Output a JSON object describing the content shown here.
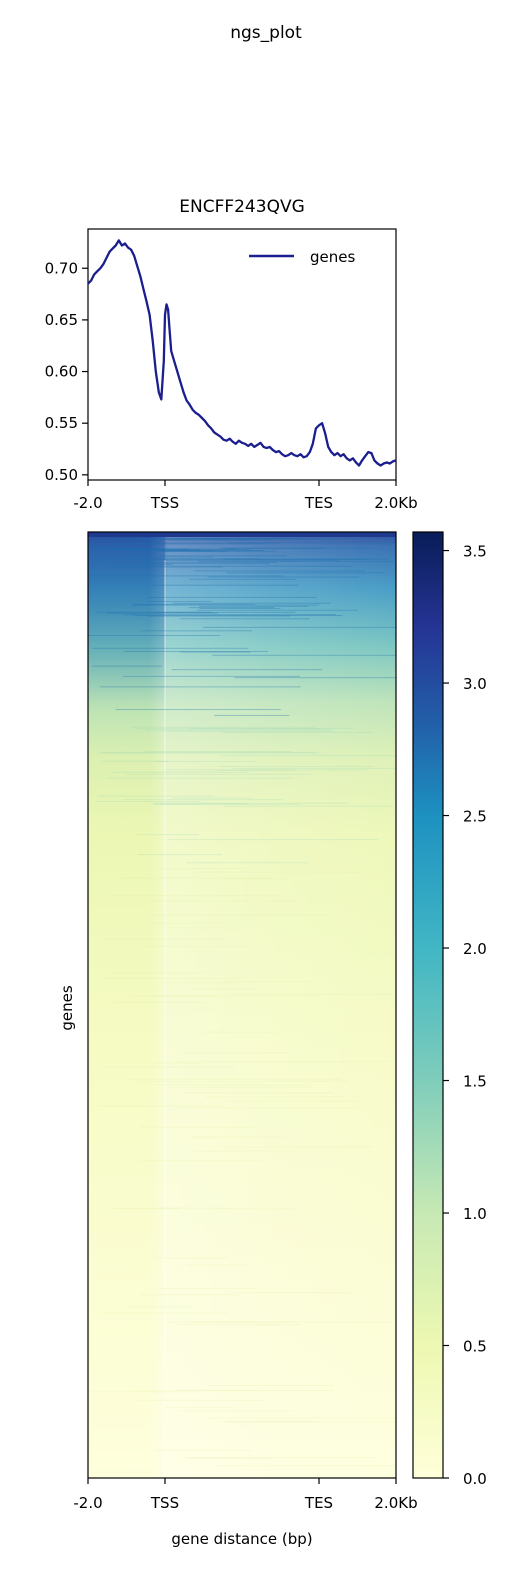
{
  "figure": {
    "suptitle": "ngs_plot"
  },
  "chart_data": [
    {
      "type": "line",
      "title": "ENCFF243QVG",
      "xlabel": "",
      "ylabel": "",
      "ylim": [
        0.495,
        0.738
      ],
      "xlim": [
        0,
        100
      ],
      "x_ticks": [
        {
          "pos": 0,
          "label": "-2.0"
        },
        {
          "pos": 25,
          "label": "TSS"
        },
        {
          "pos": 75,
          "label": "TES"
        },
        {
          "pos": 100,
          "label": "2.0Kb"
        }
      ],
      "y_ticks": [
        0.5,
        0.55,
        0.6,
        0.65,
        0.7
      ],
      "legend": "top-right",
      "series": [
        {
          "name": "genes",
          "color": "#1b1e8e",
          "points": [
            [
              0,
              0.685
            ],
            [
              1,
              0.688
            ],
            [
              2,
              0.694
            ],
            [
              3,
              0.697
            ],
            [
              4,
              0.7
            ],
            [
              5,
              0.704
            ],
            [
              6,
              0.71
            ],
            [
              7,
              0.716
            ],
            [
              8,
              0.719
            ],
            [
              9,
              0.722
            ],
            [
              10,
              0.727
            ],
            [
              11,
              0.722
            ],
            [
              12,
              0.724
            ],
            [
              13,
              0.72
            ],
            [
              14,
              0.718
            ],
            [
              15,
              0.712
            ],
            [
              16,
              0.702
            ],
            [
              17,
              0.692
            ],
            [
              18,
              0.68
            ],
            [
              19,
              0.668
            ],
            [
              20,
              0.655
            ],
            [
              21,
              0.63
            ],
            [
              22,
              0.6
            ],
            [
              23,
              0.58
            ],
            [
              23.8,
              0.573
            ],
            [
              24.6,
              0.61
            ],
            [
              25,
              0.655
            ],
            [
              25.5,
              0.665
            ],
            [
              26,
              0.66
            ],
            [
              26.5,
              0.64
            ],
            [
              27,
              0.62
            ],
            [
              28,
              0.61
            ],
            [
              29,
              0.6
            ],
            [
              30,
              0.59
            ],
            [
              31,
              0.58
            ],
            [
              32,
              0.572
            ],
            [
              33,
              0.568
            ],
            [
              34,
              0.563
            ],
            [
              35,
              0.56
            ],
            [
              36,
              0.558
            ],
            [
              37,
              0.555
            ],
            [
              38,
              0.552
            ],
            [
              39,
              0.548
            ],
            [
              40,
              0.545
            ],
            [
              41,
              0.541
            ],
            [
              42,
              0.539
            ],
            [
              43,
              0.537
            ],
            [
              44,
              0.534
            ],
            [
              45,
              0.533
            ],
            [
              46,
              0.535
            ],
            [
              47,
              0.532
            ],
            [
              48,
              0.53
            ],
            [
              49,
              0.533
            ],
            [
              50,
              0.531
            ],
            [
              51,
              0.53
            ],
            [
              52,
              0.528
            ],
            [
              53,
              0.53
            ],
            [
              54,
              0.527
            ],
            [
              55,
              0.529
            ],
            [
              56,
              0.531
            ],
            [
              57,
              0.527
            ],
            [
              58,
              0.526
            ],
            [
              59,
              0.527
            ],
            [
              60,
              0.524
            ],
            [
              61,
              0.522
            ],
            [
              62,
              0.523
            ],
            [
              63,
              0.52
            ],
            [
              64,
              0.518
            ],
            [
              65,
              0.519
            ],
            [
              66,
              0.521
            ],
            [
              67,
              0.519
            ],
            [
              68,
              0.518
            ],
            [
              69,
              0.52
            ],
            [
              70,
              0.517
            ],
            [
              71,
              0.518
            ],
            [
              72,
              0.522
            ],
            [
              73,
              0.53
            ],
            [
              74,
              0.545
            ],
            [
              75,
              0.548
            ],
            [
              76,
              0.55
            ],
            [
              77,
              0.54
            ],
            [
              78,
              0.527
            ],
            [
              79,
              0.522
            ],
            [
              80,
              0.519
            ],
            [
              81,
              0.521
            ],
            [
              82,
              0.518
            ],
            [
              83,
              0.52
            ],
            [
              84,
              0.516
            ],
            [
              85,
              0.514
            ],
            [
              86,
              0.516
            ],
            [
              87,
              0.512
            ],
            [
              88,
              0.509
            ],
            [
              89,
              0.514
            ],
            [
              90,
              0.518
            ],
            [
              91,
              0.522
            ],
            [
              92,
              0.521
            ],
            [
              93,
              0.514
            ],
            [
              94,
              0.511
            ],
            [
              95,
              0.509
            ],
            [
              96,
              0.511
            ],
            [
              97,
              0.512
            ],
            [
              98,
              0.511
            ],
            [
              99,
              0.513
            ],
            [
              100,
              0.514
            ]
          ]
        }
      ]
    },
    {
      "type": "heatmap",
      "title": "",
      "xlabel": "gene distance (bp)",
      "ylabel": "genes",
      "x_ticks": [
        {
          "pos": 0,
          "label": "-2.0"
        },
        {
          "pos": 25,
          "label": "TSS"
        },
        {
          "pos": 75,
          "label": "TES"
        },
        {
          "pos": 100,
          "label": "2.0Kb"
        }
      ],
      "colorbar": {
        "colormap": "YlGnBu",
        "range": [
          0.0,
          3.57
        ],
        "ticks": [
          "0.0",
          "0.5",
          "1.0",
          "1.5",
          "2.0",
          "2.5",
          "3.0",
          "3.5"
        ],
        "stops": [
          "#ffffd9",
          "#edf8b1",
          "#c7e9b4",
          "#7fcdbb",
          "#41b6c4",
          "#1d91c0",
          "#225ea8",
          "#253494",
          "#081d58"
        ]
      }
    }
  ]
}
